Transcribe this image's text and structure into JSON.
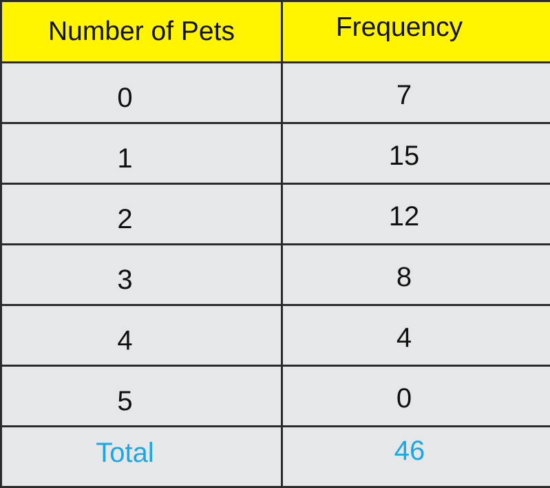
{
  "table": {
    "headers": [
      "Number of Pets",
      "Frequency"
    ],
    "rows": [
      [
        "0",
        "7"
      ],
      [
        "1",
        "15"
      ],
      [
        "2",
        "12"
      ],
      [
        "3",
        "8"
      ],
      [
        "4",
        "4"
      ],
      [
        "5",
        "0"
      ]
    ],
    "total": {
      "label": "Total",
      "value": "46"
    }
  },
  "colors": {
    "header_background": "#fff500",
    "body_background": "#e6e7e9",
    "total_text": "#1aa7e6",
    "border": "#2b2b2b"
  }
}
